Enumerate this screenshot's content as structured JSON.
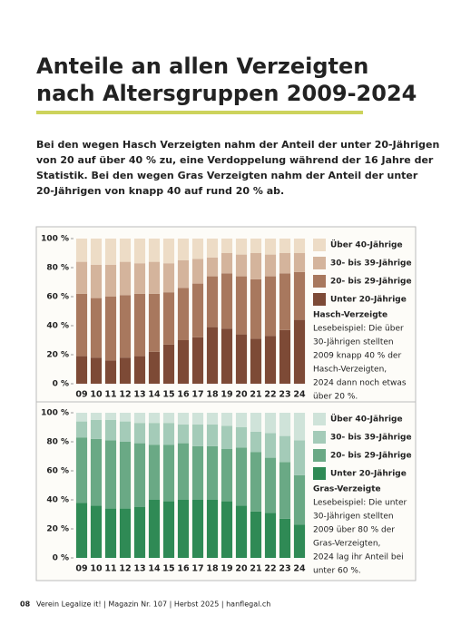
{
  "header": {
    "title": [
      "Anteile an allen Verzeigten",
      "nach Altersgruppen 2009-2024"
    ],
    "intro": [
      "Bei den wegen Hasch Verzeigten nahm der Anteil der unter 20-Jährigen",
      "von 20 auf über 40 % zu, eine Verdoppelung während der 16 Jahre der",
      "Statistik. Bei den wegen Gras Verzeigten nahm der Anteil der unter",
      "20-Jährigen von knapp 40 auf rund 20 % ab."
    ]
  },
  "chart_data": [
    {
      "type": "bar",
      "stacked": true,
      "title": "Hasch-Verzeigte",
      "annotation": [
        "Lesebeispiel: Die über",
        "30-Jährigen stellten",
        "2009 knapp 40 % der",
        "Hasch-Verzeigten,",
        "2024 dann noch etwas",
        "über 20 %."
      ],
      "categories": [
        "09",
        "10",
        "11",
        "12",
        "13",
        "14",
        "15",
        "16",
        "17",
        "18",
        "19",
        "20",
        "21",
        "22",
        "23",
        "24"
      ],
      "series": [
        {
          "name": "Unter 20-Jährige",
          "color": "#7d4a36",
          "values": [
            19,
            18,
            16,
            18,
            19,
            22,
            27,
            30,
            32,
            39,
            38,
            34,
            31,
            33,
            37,
            44
          ]
        },
        {
          "name": "20- bis 29-Jährige",
          "color": "#a8785e",
          "values": [
            43,
            41,
            44,
            43,
            43,
            40,
            36,
            36,
            37,
            35,
            38,
            40,
            41,
            41,
            39,
            33
          ]
        },
        {
          "name": "30- bis 39-Jährige",
          "color": "#d4b49c",
          "values": [
            22,
            23,
            22,
            23,
            21,
            22,
            20,
            19,
            17,
            13,
            14,
            15,
            18,
            15,
            14,
            13
          ]
        },
        {
          "name": "Über 40-Jährige",
          "color": "#eddcc6",
          "values": [
            16,
            18,
            18,
            16,
            17,
            16,
            17,
            15,
            14,
            13,
            10,
            11,
            10,
            11,
            10,
            10
          ]
        }
      ],
      "ylim": [
        0,
        100
      ],
      "yticks": [
        {
          "value": 0,
          "label": "0 %"
        },
        {
          "value": 20,
          "label": "20 %"
        },
        {
          "value": 40,
          "label": "40 %"
        },
        {
          "value": 60,
          "label": "60 %"
        },
        {
          "value": 80,
          "label": "80 %"
        },
        {
          "value": 100,
          "label": "100 %"
        }
      ]
    },
    {
      "type": "bar",
      "stacked": true,
      "title": "Gras-Verzeigte",
      "annotation": [
        "Lesebeispiel: Die unter",
        "30-Jährigen stellten",
        "2009 über 80 % der",
        "Gras-Verzeigten,",
        "2024 lag ihr Anteil bei",
        "unter 60 %."
      ],
      "categories": [
        "09",
        "10",
        "11",
        "12",
        "13",
        "14",
        "15",
        "16",
        "17",
        "18",
        "19",
        "20",
        "21",
        "22",
        "23",
        "24"
      ],
      "series": [
        {
          "name": "Unter 20-Jährige",
          "color": "#2f8a55",
          "values": [
            38,
            36,
            34,
            34,
            35,
            40,
            39,
            40,
            40,
            40,
            39,
            36,
            32,
            31,
            27,
            23
          ]
        },
        {
          "name": "20- bis 29-Jährige",
          "color": "#6aa985",
          "values": [
            45,
            46,
            47,
            46,
            44,
            38,
            39,
            39,
            37,
            37,
            36,
            40,
            41,
            38,
            39,
            34
          ]
        },
        {
          "name": "30- bis 39-Jährige",
          "color": "#a4cbb8",
          "values": [
            11,
            13,
            14,
            14,
            14,
            15,
            15,
            13,
            15,
            15,
            16,
            14,
            14,
            17,
            18,
            24
          ]
        },
        {
          "name": "Über 40-Jährige",
          "color": "#cfe3d9",
          "values": [
            6,
            5,
            5,
            6,
            7,
            7,
            7,
            8,
            8,
            8,
            9,
            10,
            13,
            14,
            16,
            19
          ]
        }
      ],
      "ylim": [
        0,
        100
      ],
      "yticks": [
        {
          "value": 0,
          "label": "0 %"
        },
        {
          "value": 20,
          "label": "20 %"
        },
        {
          "value": 40,
          "label": "40 %"
        },
        {
          "value": 60,
          "label": "60 %"
        },
        {
          "value": 80,
          "label": "80 %"
        },
        {
          "value": 100,
          "label": "100 %"
        }
      ]
    }
  ],
  "footer": {
    "page": "08",
    "text": "Verein Legalize it! | Magazin Nr. 107 | Herbst 2025 | hanflegal.ch"
  }
}
